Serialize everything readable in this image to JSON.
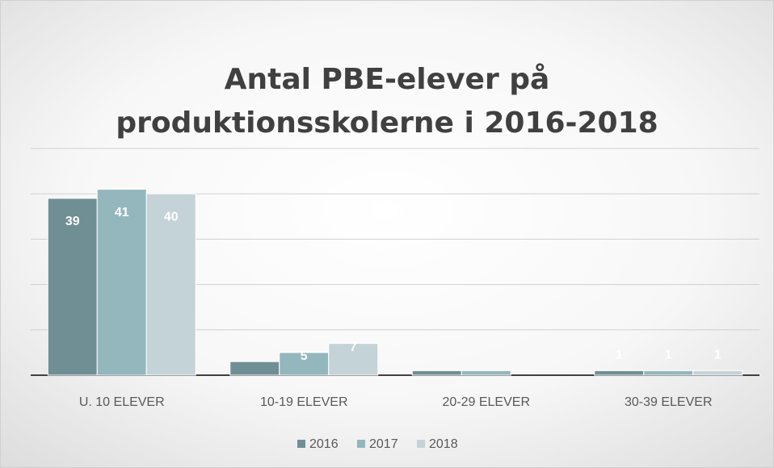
{
  "chart_data": {
    "type": "bar",
    "title": "Antal PBE-elever på produktionsskolerne i 2016-2018",
    "categories": [
      "U. 10 ELEVER",
      "10-19 ELEVER",
      "20-29 ELEVER",
      "30-39 ELEVER"
    ],
    "series": [
      {
        "name": "2016",
        "color": "#6f8f95",
        "values": [
          39,
          3,
          1,
          1
        ],
        "value_labels": [
          "39",
          null,
          null,
          "1"
        ]
      },
      {
        "name": "2017",
        "color": "#94b6bd",
        "values": [
          41,
          5,
          1,
          1
        ],
        "value_labels": [
          "41",
          "5",
          null,
          "1"
        ]
      },
      {
        "name": "2018",
        "color": "#c4d3d8",
        "values": [
          40,
          7,
          0,
          1
        ],
        "value_labels": [
          "40",
          "7",
          null,
          "1"
        ]
      }
    ],
    "ylim": [
      0,
      50
    ],
    "yticks": [
      0,
      10,
      20,
      30,
      40,
      50
    ],
    "grid": true,
    "legend": "bottom"
  }
}
